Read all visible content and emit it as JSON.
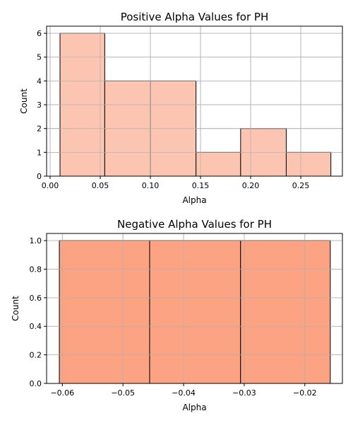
{
  "chart_data": [
    {
      "type": "bar",
      "title": "Positive Alpha Values for PH",
      "xlabel": "Alpha",
      "ylabel": "Count",
      "xlim": [
        -0.0035,
        0.2915
      ],
      "ylim": [
        0,
        6.3
      ],
      "x_ticks": [
        0.0,
        0.05,
        0.1,
        0.15,
        0.2,
        0.25
      ],
      "x_tick_labels": [
        "0.00",
        "0.05",
        "0.10",
        "0.15",
        "0.20",
        "0.25"
      ],
      "y_ticks": [
        0,
        1,
        2,
        3,
        4,
        5,
        6
      ],
      "y_tick_labels": [
        "0",
        "1",
        "2",
        "3",
        "4",
        "5",
        "6"
      ],
      "bin_edges": [
        0.0099,
        0.0545,
        0.1,
        0.1455,
        0.19,
        0.2355,
        0.28
      ],
      "values": [
        6,
        4,
        4,
        1,
        2,
        1
      ],
      "bar_color": "#fcc5b1",
      "edge_color": "#000000",
      "grid": true
    },
    {
      "type": "bar",
      "title": "Negative Alpha Values for PH",
      "xlabel": "Alpha",
      "ylabel": "Count",
      "xlim": [
        -0.0626,
        -0.0138
      ],
      "ylim": [
        0,
        1.05
      ],
      "x_ticks": [
        -0.06,
        -0.05,
        -0.04,
        -0.03,
        -0.02
      ],
      "x_tick_labels": [
        "−0.06",
        "−0.05",
        "−0.04",
        "−0.03",
        "−0.02"
      ],
      "y_ticks": [
        0,
        0.2,
        0.4,
        0.6,
        0.8,
        1.0
      ],
      "y_tick_labels": [
        "0.0",
        "0.2",
        "0.4",
        "0.6",
        "0.8",
        "1.0"
      ],
      "bin_edges": [
        -0.0605,
        -0.0456,
        -0.0306,
        -0.0158
      ],
      "values": [
        1,
        1,
        1
      ],
      "bar_color": "#fca383",
      "edge_color": "#000000",
      "grid": true
    }
  ]
}
